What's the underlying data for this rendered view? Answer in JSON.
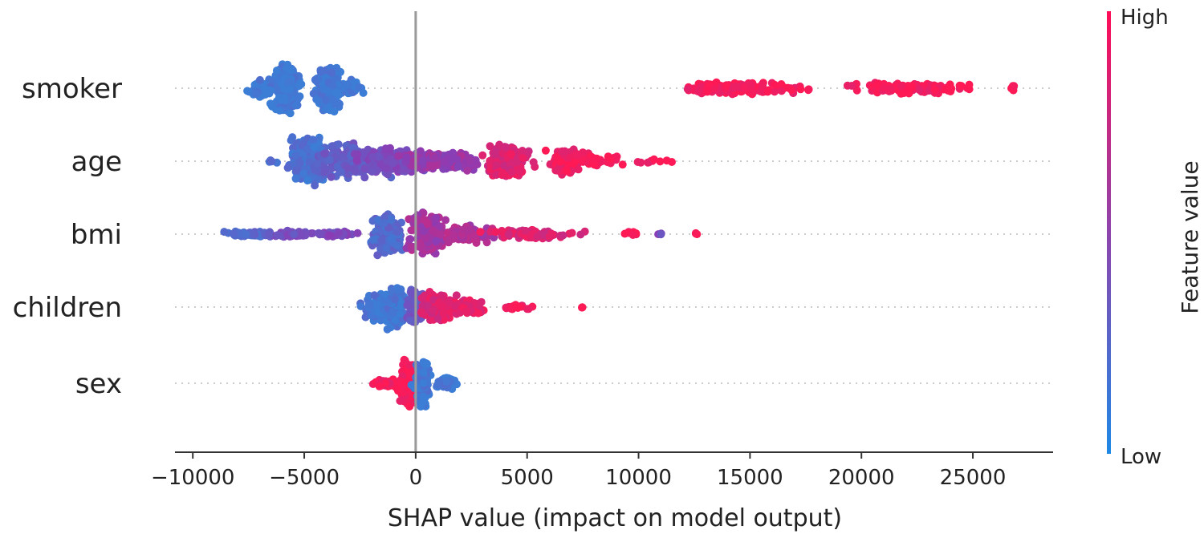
{
  "chart_data": {
    "type": "scatter",
    "subtype": "shap-beeswarm",
    "title": "",
    "xlabel": "SHAP value (impact on model output)",
    "ylabel": "",
    "xlim": [
      -10800,
      28600
    ],
    "xticks": [
      -10000,
      -5000,
      0,
      5000,
      10000,
      15000,
      20000,
      25000
    ],
    "xtick_labels": [
      "−10000",
      "−5000",
      "0",
      "5000",
      "10000",
      "15000",
      "20000",
      "25000"
    ],
    "zero_line": 0,
    "features": [
      {
        "name": "smoker",
        "clusters": [
          {
            "center": -5800,
            "spread": 350,
            "height": 1.0,
            "n": 260,
            "color": 0.02
          },
          {
            "center": -3900,
            "spread": 380,
            "height": 1.0,
            "n": 260,
            "color": 0.02
          },
          {
            "center": -6800,
            "spread": 400,
            "height": 0.4,
            "n": 60,
            "color": 0.02
          },
          {
            "center": -2900,
            "spread": 300,
            "height": 0.35,
            "n": 40,
            "color": 0.02
          },
          {
            "center": 14200,
            "spread": 1500,
            "height": 0.25,
            "n": 140,
            "color": 0.98
          },
          {
            "center": 22200,
            "spread": 1800,
            "height": 0.25,
            "n": 140,
            "color": 0.98
          },
          {
            "center": 17300,
            "spread": 500,
            "height": 0.1,
            "n": 12,
            "color": 0.98
          },
          {
            "center": 26800,
            "spread": 60,
            "height": 0.12,
            "n": 4,
            "color": 0.98
          }
        ]
      },
      {
        "name": "age",
        "clusters": [
          {
            "center": -4800,
            "spread": 500,
            "height": 1.0,
            "n": 220,
            "color": 0.08
          },
          {
            "center": -3000,
            "spread": 900,
            "height": 0.75,
            "n": 180,
            "color": 0.25
          },
          {
            "center": -1200,
            "spread": 900,
            "height": 0.55,
            "n": 160,
            "color": 0.4
          },
          {
            "center": 1000,
            "spread": 1100,
            "height": 0.4,
            "n": 160,
            "color": 0.55
          },
          {
            "center": 4200,
            "spread": 700,
            "height": 0.65,
            "n": 200,
            "color": 0.85
          },
          {
            "center": 6800,
            "spread": 500,
            "height": 0.55,
            "n": 150,
            "color": 0.95
          },
          {
            "center": 8400,
            "spread": 600,
            "height": 0.2,
            "n": 30,
            "color": 0.98
          },
          {
            "center": 10800,
            "spread": 700,
            "height": 0.1,
            "n": 10,
            "color": 0.98
          },
          {
            "center": -6500,
            "spread": 200,
            "height": 0.1,
            "n": 4,
            "color": 0.1
          }
        ]
      },
      {
        "name": "bmi",
        "clusters": [
          {
            "center": -7500,
            "spread": 700,
            "height": 0.12,
            "n": 50,
            "color": 0.15
          },
          {
            "center": -5600,
            "spread": 700,
            "height": 0.15,
            "n": 50,
            "color": 0.35
          },
          {
            "center": -3500,
            "spread": 700,
            "height": 0.12,
            "n": 30,
            "color": 0.4
          },
          {
            "center": -1300,
            "spread": 450,
            "height": 0.85,
            "n": 190,
            "color": 0.15
          },
          {
            "center": 500,
            "spread": 500,
            "height": 0.9,
            "n": 190,
            "color": 0.6
          },
          {
            "center": 2300,
            "spread": 800,
            "height": 0.35,
            "n": 110,
            "color": 0.65
          },
          {
            "center": 5200,
            "spread": 1200,
            "height": 0.2,
            "n": 100,
            "color": 0.85
          },
          {
            "center": 9600,
            "spread": 250,
            "height": 0.1,
            "n": 8,
            "color": 0.98
          },
          {
            "center": 11000,
            "spread": 80,
            "height": 0.08,
            "n": 3,
            "color": 0.4
          },
          {
            "center": 12600,
            "spread": 80,
            "height": 0.08,
            "n": 3,
            "color": 0.98
          }
        ]
      },
      {
        "name": "children",
        "clusters": [
          {
            "center": -1500,
            "spread": 550,
            "height": 0.6,
            "n": 160,
            "color": 0.05
          },
          {
            "center": -900,
            "spread": 300,
            "height": 0.9,
            "n": 120,
            "color": 0.05
          },
          {
            "center": 0,
            "spread": 250,
            "height": 0.7,
            "n": 90,
            "color": 0.3
          },
          {
            "center": 900,
            "spread": 500,
            "height": 0.6,
            "n": 120,
            "color": 0.85
          },
          {
            "center": 2200,
            "spread": 600,
            "height": 0.3,
            "n": 80,
            "color": 0.9
          },
          {
            "center": 4500,
            "spread": 450,
            "height": 0.12,
            "n": 20,
            "color": 0.92
          },
          {
            "center": 7500,
            "spread": 60,
            "height": 0.08,
            "n": 3,
            "color": 0.98
          }
        ]
      },
      {
        "name": "sex",
        "clusters": [
          {
            "center": -400,
            "spread": 250,
            "height": 1.0,
            "n": 140,
            "color": 0.97
          },
          {
            "center": -1400,
            "spread": 350,
            "height": 0.2,
            "n": 40,
            "color": 0.98
          },
          {
            "center": 300,
            "spread": 200,
            "height": 1.0,
            "n": 130,
            "color": 0.03
          },
          {
            "center": 1300,
            "spread": 350,
            "height": 0.25,
            "n": 40,
            "color": 0.03
          }
        ]
      }
    ],
    "colorbar": {
      "title": "Feature value",
      "high_label": "High",
      "low_label": "Low",
      "low_color": "#1e88e5",
      "high_color": "#ff0d57"
    },
    "colors": {
      "blue": "#3a7bd5",
      "red": "#ff1f55",
      "zero_line": "#999999",
      "grid_dots": "#cccccc",
      "axis": "#333333"
    }
  }
}
